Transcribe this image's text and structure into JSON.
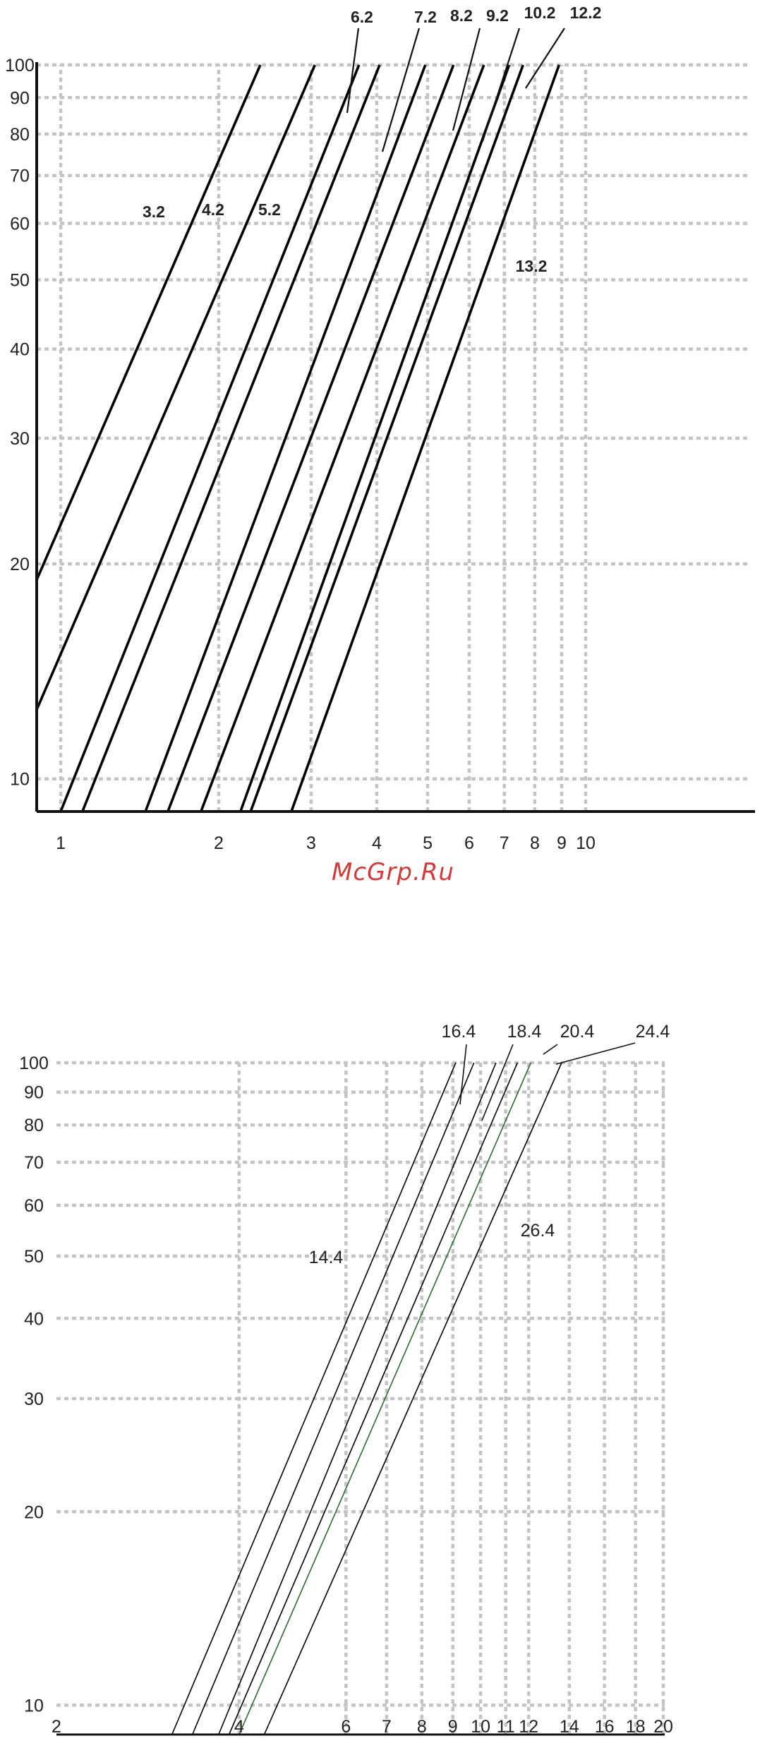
{
  "watermark": "McGrp.Ru",
  "chart_data": [
    {
      "type": "line",
      "x_scale": "log",
      "y_scale": "log",
      "xlim": [
        0.9,
        10
      ],
      "ylim": [
        9,
        100
      ],
      "x_ticks": [
        1,
        2,
        3,
        4,
        5,
        6,
        7,
        8,
        9,
        10
      ],
      "y_ticks": [
        10,
        20,
        30,
        40,
        50,
        60,
        70,
        80,
        90,
        100
      ],
      "grid": true,
      "line_color": "#000000",
      "series": [
        {
          "name": "3.2",
          "x": [
            0.9,
            2.4
          ],
          "y": [
            19,
            100
          ]
        },
        {
          "name": "4.2",
          "x": [
            0.9,
            3.05
          ],
          "y": [
            12.5,
            100
          ]
        },
        {
          "name": "",
          "x": [
            1.0,
            3.7
          ],
          "y": [
            9,
            100
          ]
        },
        {
          "name": "5.2",
          "x": [
            1.1,
            4.05
          ],
          "y": [
            9,
            100
          ]
        },
        {
          "name": "6.2",
          "x": [
            1.45,
            4.95
          ],
          "y": [
            9,
            100
          ]
        },
        {
          "name": "7.2",
          "x": [
            1.6,
            5.6
          ],
          "y": [
            9,
            100
          ]
        },
        {
          "name": "8.2",
          "x": [
            1.85,
            6.4
          ],
          "y": [
            9,
            100
          ]
        },
        {
          "name": "9.2",
          "x": [
            2.2,
            7.15
          ],
          "y": [
            9,
            100
          ]
        },
        {
          "name": "10.2",
          "x": [
            2.3,
            7.6
          ],
          "y": [
            9,
            100
          ]
        },
        {
          "name": "12.2",
          "x": [
            2.75,
            8.9
          ],
          "y": [
            9,
            100
          ]
        }
      ],
      "annotations": [
        {
          "text": "3.2"
        },
        {
          "text": "4.2"
        },
        {
          "text": "5.2"
        },
        {
          "text": "6.2"
        },
        {
          "text": "7.2"
        },
        {
          "text": "8.2"
        },
        {
          "text": "9.2"
        },
        {
          "text": "10.2"
        },
        {
          "text": "12.2"
        },
        {
          "text": "13.2"
        }
      ]
    },
    {
      "type": "line",
      "x_scale": "log",
      "y_scale": "log",
      "xlim": [
        2,
        20
      ],
      "ylim": [
        9,
        100
      ],
      "x_ticks": [
        2,
        4,
        6,
        7,
        8,
        9,
        10,
        11,
        12,
        14,
        16,
        18,
        20
      ],
      "y_ticks": [
        10,
        20,
        30,
        40,
        50,
        60,
        70,
        80,
        90,
        100
      ],
      "grid": true,
      "line_color": "#000000",
      "highlight_color": "#2f6b2f",
      "series": [
        {
          "name": "14.4",
          "x": [
            3.1,
            9.1
          ],
          "y": [
            9,
            100
          ]
        },
        {
          "name": "16.4",
          "x": [
            3.35,
            9.75
          ],
          "y": [
            9,
            100
          ]
        },
        {
          "name": "18.4",
          "x": [
            3.7,
            10.6
          ],
          "y": [
            9,
            100
          ]
        },
        {
          "name": "",
          "x": [
            3.85,
            11.5
          ],
          "y": [
            9,
            100
          ]
        },
        {
          "name": "20.4",
          "x": [
            4.0,
            12.1
          ],
          "y": [
            9,
            100
          ],
          "highlight": true
        },
        {
          "name": "26.4",
          "x": [
            4.4,
            13.6
          ],
          "y": [
            9,
            100
          ]
        }
      ],
      "annotations": [
        {
          "text": "16.4"
        },
        {
          "text": "18.4"
        },
        {
          "text": "20.4"
        },
        {
          "text": "24.4"
        },
        {
          "text": "14.4"
        },
        {
          "text": "26.4"
        }
      ]
    }
  ]
}
